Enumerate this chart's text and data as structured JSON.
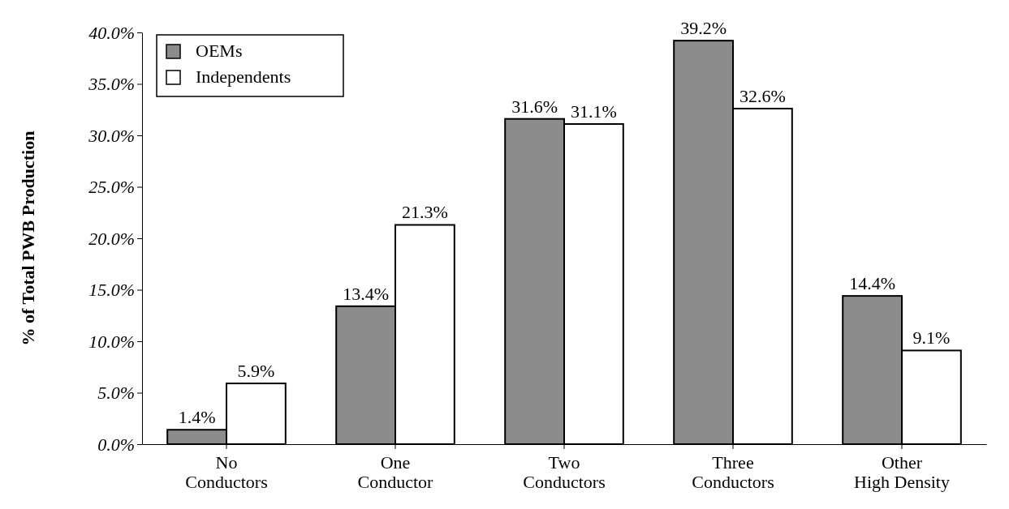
{
  "chart_data": {
    "type": "bar",
    "ylabel": "% of Total PWB Production",
    "categories": [
      "No\nConductors",
      "One\nConductor",
      "Two\nConductors",
      "Three\nConductors",
      "Other\nHigh Density"
    ],
    "series": [
      {
        "name": "OEMs",
        "color": "#8c8c8c",
        "values": [
          1.4,
          13.4,
          31.6,
          39.2,
          14.4
        ],
        "value_labels": [
          "1.4%",
          "13.4%",
          "31.6%",
          "39.2%",
          "14.4%"
        ]
      },
      {
        "name": "Independents",
        "color": "#ffffff",
        "values": [
          5.9,
          21.3,
          31.1,
          32.6,
          9.1
        ],
        "value_labels": [
          "5.9%",
          "21.3%",
          "31.1%",
          "32.6%",
          "9.1%"
        ]
      }
    ],
    "ylim": [
      0,
      40
    ],
    "yticks": [
      {
        "value": 0,
        "label": "0.0%"
      },
      {
        "value": 5,
        "label": "5.0%"
      },
      {
        "value": 10,
        "label": "10.0%"
      },
      {
        "value": 15,
        "label": "15.0%"
      },
      {
        "value": 20,
        "label": "20.0%"
      },
      {
        "value": 25,
        "label": "25.0%"
      },
      {
        "value": 30,
        "label": "30.0%"
      },
      {
        "value": 35,
        "label": "35.0%"
      },
      {
        "value": 40,
        "label": "40.0%"
      }
    ],
    "grid": false,
    "legend": "top left"
  }
}
